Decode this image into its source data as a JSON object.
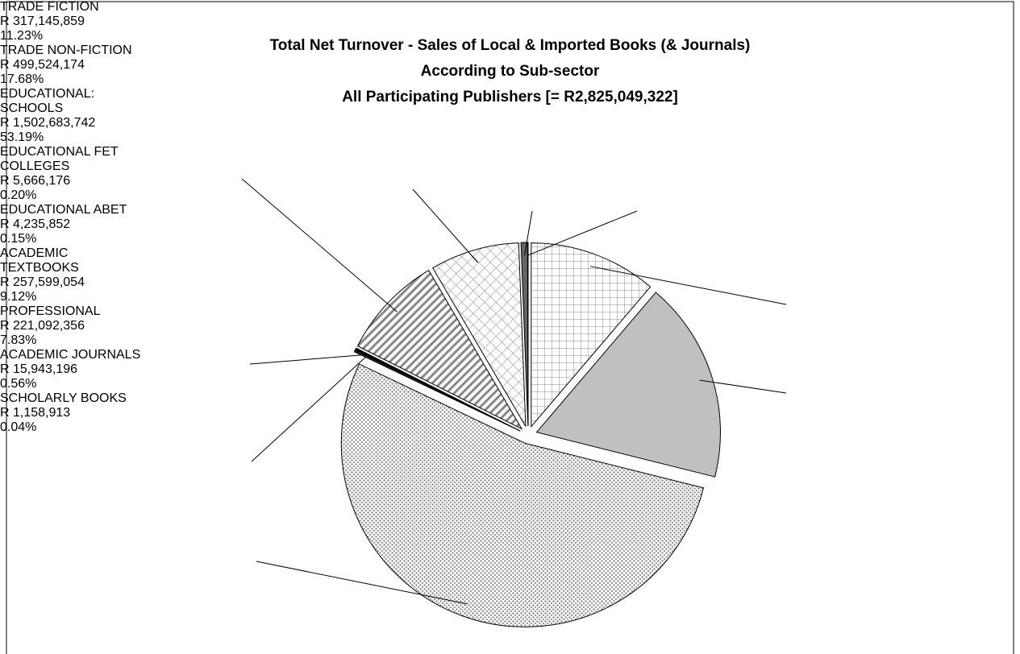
{
  "chart_data": {
    "type": "pie",
    "title": "Total Net Turnover - Sales of Local & Imported Books (& Journals)",
    "subtitle": "According to Sub-sector",
    "subtitle2": "All Participating Publishers [= R2,825,049,322]",
    "categories": [
      "TRADE FICTION",
      "TRADE NON-FICTION",
      "EDUCATIONAL: SCHOOLS",
      "EDUCATIONAL FET COLLEGES",
      "EDUCATIONAL ABET",
      "ACADEMIC TEXTBOOKS",
      "PROFESSIONAL",
      "ACADEMIC JOURNALS",
      "SCHOLARLY BOOKS"
    ],
    "values": [
      317145859,
      499524174,
      1502683742,
      5666176,
      4235852,
      257599054,
      221092356,
      15943196,
      1158913
    ],
    "value_labels": [
      "R 317,145,859",
      "R 499,524,174",
      "R 1,502,683,742",
      "R 5,666,176",
      "R 4,235,852",
      "R 257,599,054",
      "R 221,092,356",
      "R 15,943,196",
      "R 1,158,913"
    ],
    "percents": [
      11.23,
      17.68,
      53.19,
      0.2,
      0.15,
      9.12,
      7.83,
      0.56,
      0.04
    ],
    "percent_labels": [
      "11.23%",
      "17.68%",
      "53.19%",
      "0.20%",
      "0.15%",
      "9.12%",
      "7.83%",
      "0.56%",
      "0.04%"
    ],
    "colors": [
      "#ffffff",
      "#c0c0c0",
      "#ffffff",
      "#222222",
      "#000000",
      "#ffffff",
      "#ffffff",
      "#666666",
      "#999999"
    ],
    "patterns": [
      "grid",
      "solid",
      "dots",
      "solid",
      "solid",
      "stripes",
      "crosshatch",
      "solid",
      "solid"
    ]
  }
}
